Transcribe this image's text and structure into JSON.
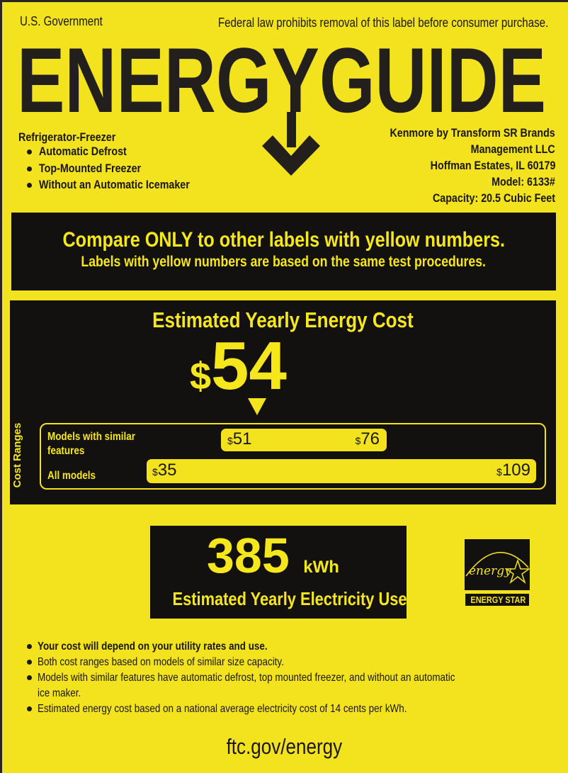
{
  "header": {
    "left": "U.S. Government",
    "right": "Federal law prohibits removal of this label before consumer purchase.",
    "title": "ENERGYGUIDE"
  },
  "product": {
    "type": "Refrigerator-Freezer",
    "features": [
      "Automatic Defrost",
      "Top-Mounted Freezer",
      "Without an Automatic Icemaker"
    ]
  },
  "manufacturer": {
    "lines": [
      "Kenmore by Transform SR Brands",
      "Management LLC",
      "Hoffman Estates, IL 60179",
      "Model: 6133#",
      "Capacity: 20.5 Cubic Feet"
    ]
  },
  "compare": {
    "line1": "Compare ONLY to other labels with yellow numbers.",
    "line2": "Labels with yellow numbers are based on the same test procedures."
  },
  "cost": {
    "title": "Estimated Yearly Energy Cost",
    "currency": "$",
    "value": "54",
    "ranges_label": "Cost Ranges",
    "similar": {
      "label": "Models with similar features",
      "low": "51",
      "high": "76"
    },
    "all": {
      "label": "All models",
      "low": "35",
      "high": "109"
    }
  },
  "electricity": {
    "value": "385",
    "unit": "kWh",
    "label": "Estimated Yearly Electricity Use"
  },
  "energy_star": {
    "script": "energy",
    "label": "ENERGY STAR"
  },
  "notes": [
    "Your cost will depend on your utility rates and use.",
    "Both cost ranges based on models of similar size capacity.",
    "Models with similar features have automatic defrost, top mounted freezer, and without an automatic ice maker.",
    "Estimated energy cost based on a national average electricity cost of 14 cents per kWh."
  ],
  "footer": "ftc.gov/energy",
  "colors": {
    "label_yellow": "#f3e21e",
    "black": "#131110"
  }
}
